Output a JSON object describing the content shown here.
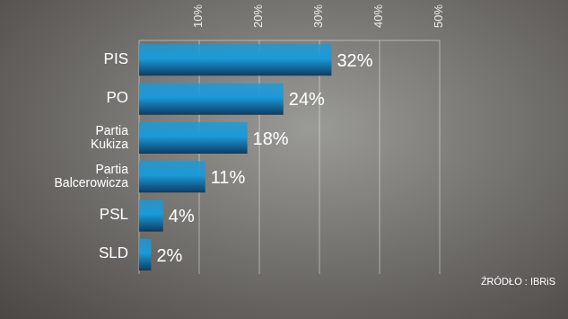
{
  "chart_data": {
    "type": "bar",
    "orientation": "horizontal",
    "categories": [
      "PIS",
      "PO",
      "Partia Kukiza",
      "Partia Balcerowicza",
      "PSL",
      "SLD"
    ],
    "values": [
      32,
      24,
      18,
      11,
      4,
      2
    ],
    "value_labels": [
      "32%",
      "24%",
      "18%",
      "11%",
      "4%",
      "2%"
    ],
    "data_labels": true,
    "color": "#1a9ad9",
    "xlim": [
      0,
      50
    ],
    "xticks": [
      {
        "value": 10,
        "label": "10%"
      },
      {
        "value": 20,
        "label": "20%"
      },
      {
        "value": 30,
        "label": "30%"
      },
      {
        "value": 40,
        "label": "40%"
      },
      {
        "value": 50,
        "label": "50%"
      }
    ],
    "grid": true,
    "annotation": "ŹRÓDŁO : IBRiS"
  }
}
